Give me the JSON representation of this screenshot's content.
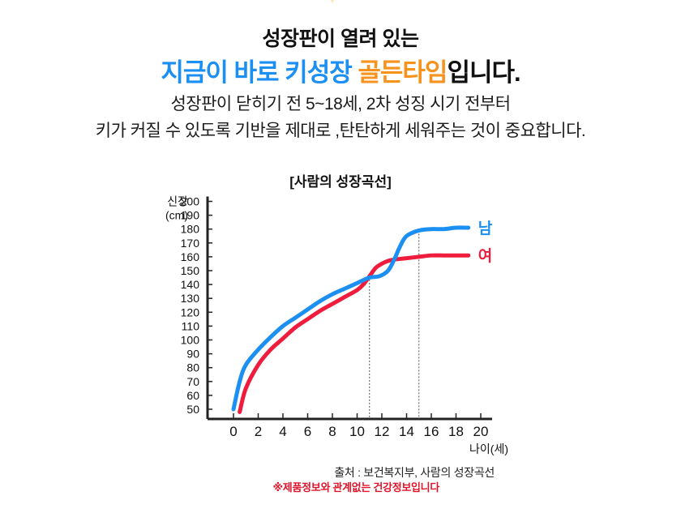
{
  "header": {
    "line1": "성장판이 열려 있는",
    "line2_blue": "지금이 바로 키성장",
    "line2_orange": "골든타임",
    "line2_rest": "입니다.",
    "sub1": "성장판이 닫히기 전 5~18세, 2차 성징 시기 전부터",
    "sub2": "키가 커질 수 있도록 기반을 제대로 ,탄탄하게 세워주는 것이 중요합니다."
  },
  "colors": {
    "blue": "#1b8ff2",
    "orange": "#f6921e",
    "male": "#1b8ff2",
    "female": "#ee1c3d",
    "note": "#e0142a"
  },
  "chart_data": {
    "type": "line",
    "title": "[사람의 성장곡선]",
    "ylabel": [
      "신장",
      "(cm)"
    ],
    "xlabel": "나이(세)",
    "x_ticks": [
      "0",
      "2",
      "4",
      "6",
      "8",
      "10",
      "12",
      "14",
      "16",
      "18",
      "20"
    ],
    "y_ticks": [
      "50",
      "60",
      "70",
      "80",
      "90",
      "100",
      "110",
      "120",
      "130",
      "140",
      "150",
      "160",
      "170",
      "180",
      "190",
      "200"
    ],
    "xlim": [
      -2,
      21
    ],
    "ylim": [
      50,
      200
    ],
    "grid": false,
    "reference_lines_x": [
      11,
      15
    ],
    "series": [
      {
        "name": "남",
        "color": "#1b8ff2",
        "x": [
          0,
          0.5,
          1,
          2,
          3,
          4,
          5,
          6,
          7,
          8,
          9,
          10,
          11,
          11.8,
          12.5,
          13,
          13.5,
          14,
          15,
          16,
          17,
          18,
          19
        ],
        "y": [
          50,
          70,
          82,
          93,
          102,
          110,
          116,
          122,
          128,
          133,
          137,
          141,
          145,
          146,
          150,
          158,
          168,
          175,
          179,
          180,
          180,
          181,
          181
        ]
      },
      {
        "name": "여",
        "color": "#ee1c3d",
        "x": [
          0.5,
          1,
          2,
          3,
          4,
          5,
          6,
          7,
          8,
          9,
          10,
          10.5,
          11,
          11.5,
          12,
          12.5,
          13,
          14,
          15,
          16,
          17,
          18,
          19
        ],
        "y": [
          48,
          65,
          82,
          93,
          101,
          109,
          115,
          121,
          126,
          131,
          136,
          140,
          146,
          152,
          155,
          157,
          158,
          159,
          160,
          161,
          161,
          161,
          161
        ]
      }
    ]
  },
  "footer": {
    "source": "출처 : 보건복지부, 사람의 성장곡선",
    "disclaimer": "※제품정보와 관계없는 건강정보입니다"
  }
}
